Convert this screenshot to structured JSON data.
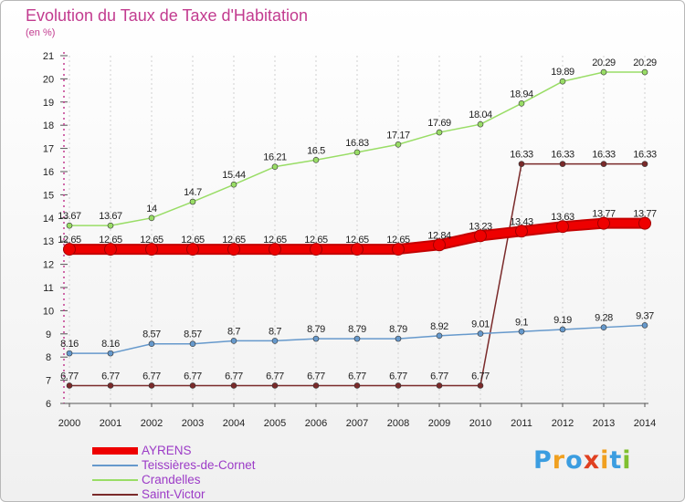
{
  "chart_data": {
    "type": "line",
    "title": "Evolution du Taux de Taxe d'Habitation",
    "ylabel": "(en %)",
    "xlabel": "",
    "x": [
      2000,
      2001,
      2002,
      2003,
      2004,
      2005,
      2006,
      2007,
      2008,
      2009,
      2010,
      2011,
      2012,
      2013,
      2014
    ],
    "ylim": [
      6,
      21
    ],
    "yticks": [
      6,
      7,
      8,
      9,
      10,
      11,
      12,
      13,
      14,
      15,
      16,
      17,
      18,
      19,
      20,
      21
    ],
    "series": [
      {
        "name": "Crandelles",
        "color": "#99dd66",
        "values": [
          13.67,
          13.67,
          14,
          14.7,
          15.44,
          16.21,
          16.5,
          16.83,
          17.17,
          17.69,
          18.04,
          18.94,
          19.89,
          20.29,
          20.29
        ],
        "labels": [
          "13.67",
          "13.67",
          "14",
          "14.7",
          "15.44",
          "16.21",
          "16.5",
          "16.83",
          "17.17",
          "17.69",
          "18.04",
          "18.94",
          "19.89",
          "20.29",
          "20.29"
        ]
      },
      {
        "name": "Saint-Victor",
        "color": "#7a2a2a",
        "values": [
          6.77,
          6.77,
          6.77,
          6.77,
          6.77,
          6.77,
          6.77,
          6.77,
          6.77,
          6.77,
          6.77,
          16.33,
          16.33,
          16.33,
          16.33
        ],
        "labels": [
          "6.77",
          "6.77",
          "6.77",
          "6.77",
          "6.77",
          "6.77",
          "6.77",
          "6.77",
          "6.77",
          "6.77",
          "6.77",
          "16.33",
          "16.33",
          "16.33",
          "16.33"
        ]
      },
      {
        "name": "Teissières-de-Cornet",
        "color": "#6699cc",
        "values": [
          8.16,
          8.16,
          8.57,
          8.57,
          8.7,
          8.7,
          8.79,
          8.79,
          8.79,
          8.92,
          9.01,
          9.1,
          9.19,
          9.28,
          9.37
        ],
        "labels": [
          "8.16",
          "8.16",
          "8.57",
          "8.57",
          "8.7",
          "8.7",
          "8.79",
          "8.79",
          "8.79",
          "8.92",
          "9.01",
          "9.1",
          "9.19",
          "9.28",
          "9.37"
        ]
      },
      {
        "name": "AYRENS",
        "color": "#ee0000",
        "values": [
          12.65,
          12.65,
          12.65,
          12.65,
          12.65,
          12.65,
          12.65,
          12.65,
          12.65,
          12.84,
          13.23,
          13.43,
          13.63,
          13.77,
          13.77
        ],
        "labels": [
          "12.65",
          "12.65",
          "12.65",
          "12.65",
          "12.65",
          "12.65",
          "12.65",
          "12.65",
          "12.65",
          "12.84",
          "13.23",
          "13.43",
          "13.63",
          "13.77",
          "13.77"
        ]
      }
    ],
    "legend_order": [
      "AYRENS",
      "Teissières-de-Cornet",
      "Crandelles",
      "Saint-Victor"
    ],
    "legend_position": "bottom-left"
  },
  "logo": {
    "letters": [
      "P",
      "r",
      "o",
      "x",
      "i",
      "t",
      "i"
    ],
    "colors": [
      "#3b9de0",
      "#f0a020",
      "#3b9de0",
      "#e04020",
      "#f0a020",
      "#3b9de0",
      "#80c030"
    ]
  }
}
